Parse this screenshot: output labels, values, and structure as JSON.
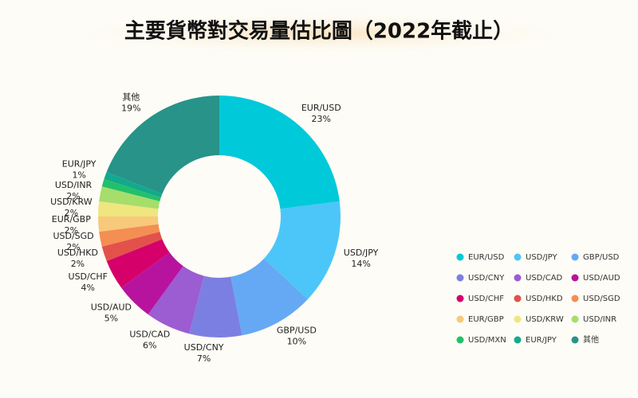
{
  "chart_data": {
    "type": "donut",
    "title": "主要貨幣對交易量估比圖（2022年截止）",
    "categories": [
      "EUR/USD",
      "USD/JPY",
      "GBP/USD",
      "USD/CNY",
      "USD/CAD",
      "USD/AUD",
      "USD/CHF",
      "USD/HKD",
      "USD/SGD",
      "EUR/GBP",
      "USD/KRW",
      "USD/INR",
      "USD/MXN",
      "EUR/JPY",
      "其他"
    ],
    "values": [
      23,
      14,
      10,
      7,
      6,
      5,
      4,
      2,
      2,
      2,
      2,
      2,
      1,
      1,
      19
    ],
    "value_labels": [
      "23%",
      "14%",
      "10%",
      "7%",
      "6%",
      "5%",
      "4%",
      "2%",
      "2%",
      "2%",
      "2%",
      "2%",
      null,
      "1%",
      "19%"
    ],
    "colors": [
      "#00c9da",
      "#4cc6f8",
      "#65a9f4",
      "#7c7fe2",
      "#9c5cd2",
      "#b8139f",
      "#d6006b",
      "#e2524a",
      "#f48e52",
      "#f8c97a",
      "#efe67f",
      "#a6dd6b",
      "#22c06b",
      "#14a98c",
      "#279389"
    ],
    "legend": "right"
  }
}
